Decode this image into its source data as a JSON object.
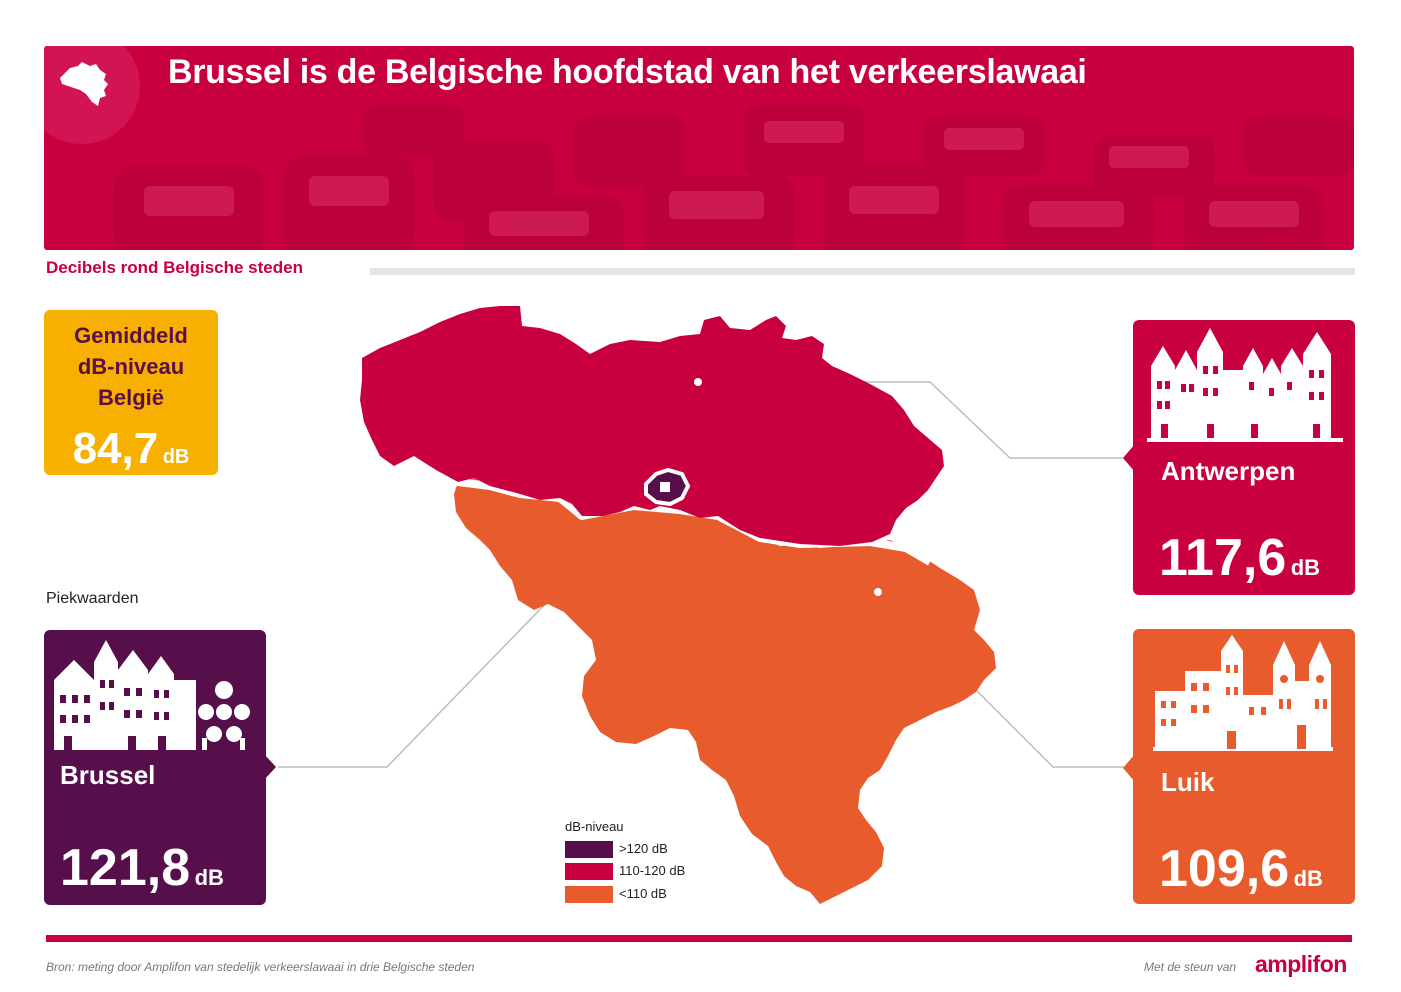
{
  "header": {
    "title": "Brussel is de Belgische hoofdstad van het verkeerslawaai",
    "icon": "belgium-map-icon"
  },
  "subtitle": "Decibels rond Belgische steden",
  "average": {
    "label_line1": "Gemiddeld",
    "label_line2": "dB-niveau",
    "label_line3": "België",
    "value": "84,7",
    "unit": "dB"
  },
  "peak_label": "Piekwaarden",
  "cities": [
    {
      "name": "Brussel",
      "value": "121,8",
      "unit": "dB",
      "color": "#560f4b",
      "icon": "brussels-skyline-icon"
    },
    {
      "name": "Antwerpen",
      "value": "117,6",
      "unit": "dB",
      "color": "#c9003f",
      "icon": "antwerp-skyline-icon"
    },
    {
      "name": "Luik",
      "value": "109,6",
      "unit": "dB",
      "color": "#e75b2c",
      "icon": "liege-skyline-icon"
    }
  ],
  "legend": {
    "title": "dB-niveau",
    "items": [
      {
        "label": ">120 dB",
        "color": "#560f4b"
      },
      {
        "label": "110-120 dB",
        "color": "#c9003f"
      },
      {
        "label": "<110 dB",
        "color": "#e75b2c"
      }
    ]
  },
  "footer": {
    "source": "Bron: meting door Amplifon van stedelijk verkeerslawaai in drie Belgische steden",
    "support": "Met de steun van",
    "brand": "amplifon"
  }
}
